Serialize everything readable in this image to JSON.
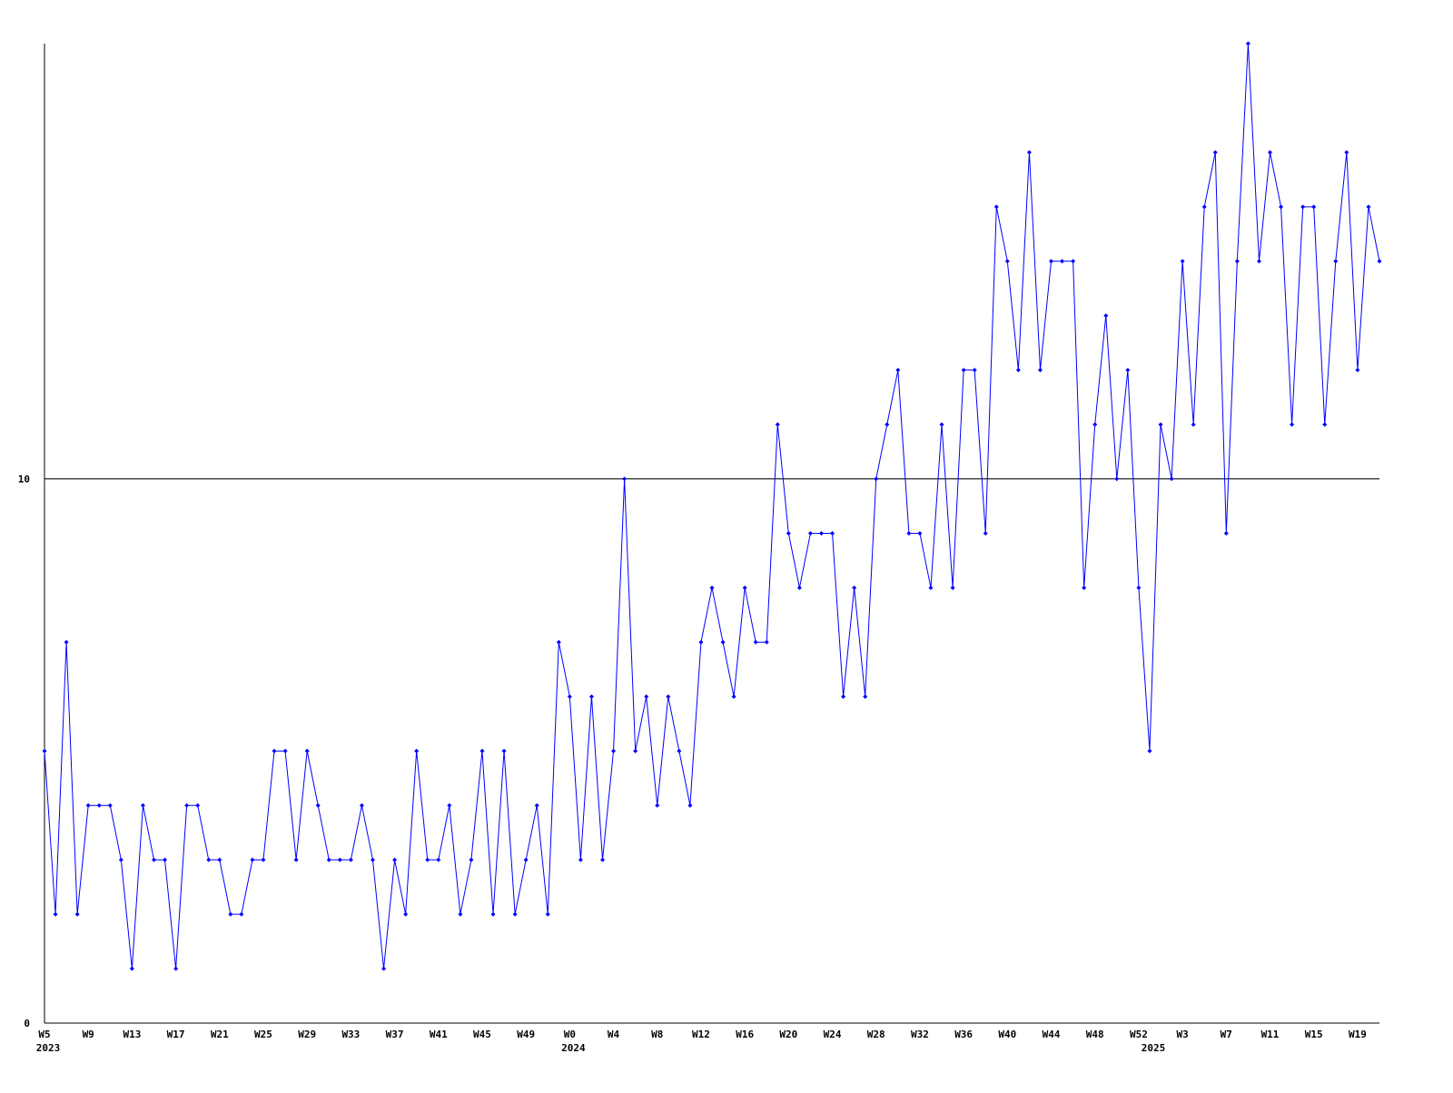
{
  "chart_data": {
    "type": "line",
    "categories": [
      "W5",
      null,
      null,
      null,
      "W9",
      null,
      null,
      null,
      "W13",
      null,
      null,
      null,
      "W17",
      null,
      null,
      null,
      "W21",
      null,
      null,
      null,
      "W25",
      null,
      null,
      null,
      "W29",
      null,
      null,
      null,
      "W33",
      null,
      null,
      null,
      "W37",
      null,
      null,
      null,
      "W41",
      null,
      null,
      null,
      "W45",
      null,
      null,
      null,
      "W49",
      null,
      null,
      null,
      "W0",
      null,
      null,
      null,
      "W4",
      null,
      null,
      null,
      "W8",
      null,
      null,
      null,
      "W12",
      null,
      null,
      null,
      "W16",
      null,
      null,
      null,
      "W20",
      null,
      null,
      null,
      "W24",
      null,
      null,
      null,
      "W28",
      null,
      null,
      null,
      "W32",
      null,
      null,
      null,
      "W36",
      null,
      null,
      null,
      "W40",
      null,
      null,
      null,
      "W44",
      null,
      null,
      null,
      "W48",
      null,
      null,
      null,
      "W52",
      null,
      null,
      null,
      "W3",
      null,
      null,
      null,
      "W7",
      null,
      null,
      null,
      "W11",
      null,
      null,
      null,
      "W15",
      null,
      null,
      null,
      "W19",
      null,
      null
    ],
    "category_years": [
      "2023",
      null,
      null,
      null,
      null,
      null,
      null,
      null,
      null,
      null,
      null,
      null,
      null,
      null,
      null,
      null,
      null,
      null,
      null,
      null,
      null,
      null,
      null,
      null,
      null,
      null,
      null,
      null,
      null,
      null,
      null,
      null,
      null,
      null,
      null,
      null,
      null,
      null,
      null,
      null,
      null,
      null,
      null,
      null,
      null,
      null,
      null,
      null,
      "2024",
      null,
      null,
      null,
      null,
      null,
      null,
      null,
      null,
      null,
      null,
      null,
      null,
      null,
      null,
      null,
      null,
      null,
      null,
      null,
      null,
      null,
      null,
      null,
      null,
      null,
      null,
      null,
      null,
      null,
      null,
      null,
      null,
      null,
      null,
      null,
      null,
      null,
      null,
      null,
      null,
      null,
      null,
      null,
      null,
      null,
      null,
      null,
      null,
      null,
      null,
      null,
      null,
      "2025",
      null,
      null,
      null,
      null,
      null,
      null,
      null,
      null,
      null,
      null,
      null,
      null,
      null,
      null,
      null,
      null,
      null,
      null,
      null,
      null,
      null
    ],
    "series": [
      {
        "color": "#0000ff",
        "values": [
          5,
          2,
          7,
          2,
          4,
          4,
          4,
          3,
          1,
          4,
          3,
          3,
          1,
          4,
          4,
          3,
          3,
          2,
          2,
          3,
          3,
          5,
          5,
          3,
          5,
          4,
          3,
          3,
          3,
          4,
          3,
          1,
          3,
          2,
          5,
          3,
          3,
          4,
          2,
          3,
          5,
          2,
          5,
          2,
          3,
          4,
          2,
          7,
          6,
          3,
          6,
          3,
          5,
          10,
          5,
          6,
          4,
          6,
          5,
          4,
          7,
          8,
          7,
          6,
          8,
          7,
          7,
          11,
          9,
          8,
          9,
          9,
          9,
          6,
          8,
          6,
          10,
          11,
          12,
          9,
          9,
          8,
          11,
          8,
          12,
          12,
          9,
          15,
          14,
          12,
          16,
          12,
          14,
          14,
          14,
          8,
          11,
          13,
          10,
          12,
          8,
          5,
          11,
          10,
          14,
          11,
          15,
          16,
          9,
          14,
          18,
          14,
          16,
          15,
          11,
          15,
          15,
          11,
          14,
          16,
          12,
          15,
          14
        ]
      }
    ],
    "ylim": [
      0,
      18
    ],
    "yticks": [
      0,
      10
    ],
    "grid": true
  }
}
